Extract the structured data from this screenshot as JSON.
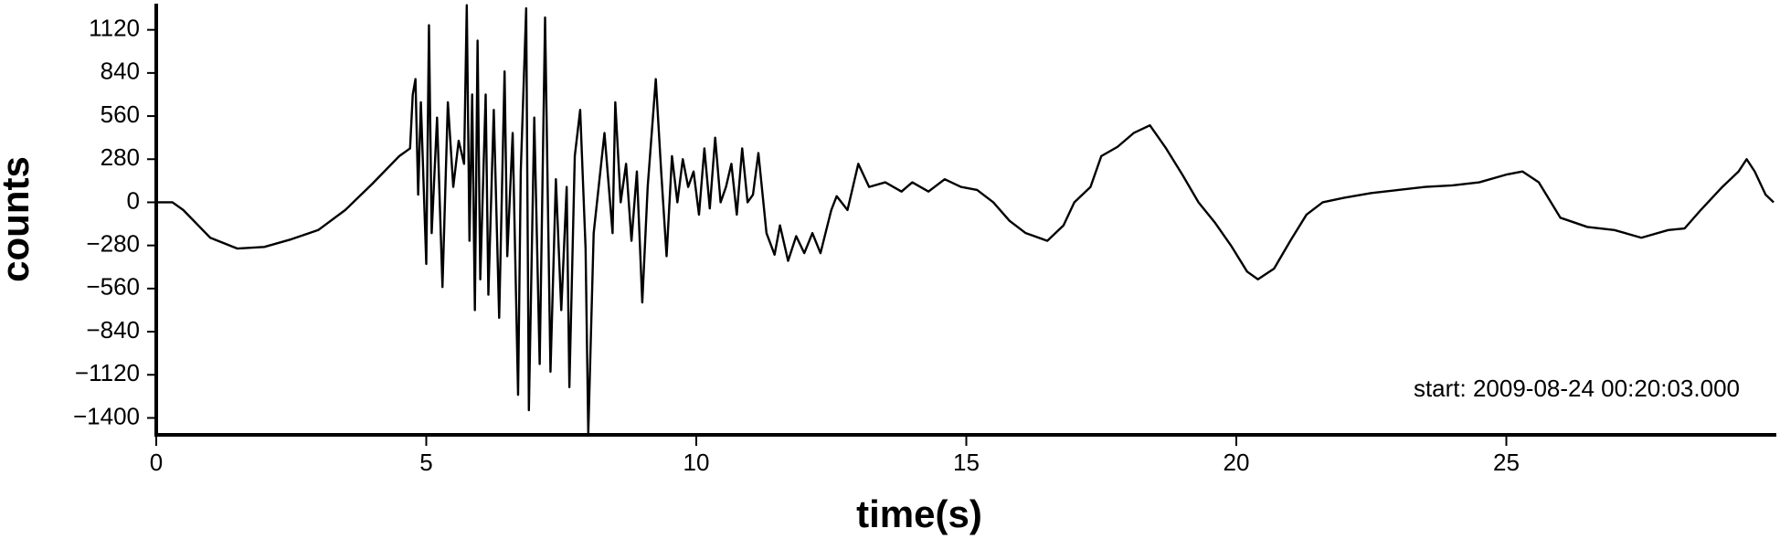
{
  "chart_data": {
    "type": "line",
    "x_label": "time(s)",
    "y_label": "counts",
    "annotation": "start: 2009-08-24 00:20:03.000",
    "xlim": [
      0,
      30
    ],
    "xticks": [
      0,
      5,
      10,
      15,
      20,
      25
    ],
    "ylim": [
      -1510,
      1290
    ],
    "yticks": [
      {
        "value": -1400,
        "label": "−1400"
      },
      {
        "value": -1120,
        "label": "−1120"
      },
      {
        "value": -840,
        "label": "−840"
      },
      {
        "value": -560,
        "label": "−560"
      },
      {
        "value": -280,
        "label": "−280"
      },
      0,
      280,
      560,
      840,
      1120
    ],
    "series": [
      {
        "color": "#000000",
        "x": [
          0,
          0.3,
          0.5,
          1.0,
          1.5,
          2.0,
          2.5,
          3.0,
          3.5,
          4.0,
          4.5,
          4.7,
          4.75,
          4.8,
          4.85,
          4.9,
          5.0,
          5.05,
          5.1,
          5.2,
          5.3,
          5.4,
          5.5,
          5.6,
          5.7,
          5.75,
          5.8,
          5.85,
          5.9,
          5.95,
          6.0,
          6.1,
          6.15,
          6.25,
          6.35,
          6.45,
          6.5,
          6.6,
          6.7,
          6.75,
          6.85,
          6.9,
          7.0,
          7.1,
          7.2,
          7.3,
          7.4,
          7.5,
          7.6,
          7.65,
          7.75,
          7.85,
          7.95,
          8.0,
          8.1,
          8.3,
          8.45,
          8.5,
          8.6,
          8.7,
          8.8,
          8.9,
          9.0,
          9.1,
          9.25,
          9.35,
          9.45,
          9.55,
          9.65,
          9.75,
          9.85,
          9.95,
          10.05,
          10.15,
          10.25,
          10.35,
          10.45,
          10.55,
          10.65,
          10.75,
          10.85,
          10.95,
          11.05,
          11.15,
          11.3,
          11.45,
          11.55,
          11.7,
          11.85,
          12.0,
          12.15,
          12.3,
          12.5,
          12.6,
          12.8,
          13.0,
          13.2,
          13.5,
          13.8,
          14.0,
          14.3,
          14.6,
          14.9,
          15.2,
          15.5,
          15.8,
          16.1,
          16.5,
          16.8,
          17.0,
          17.3,
          17.5,
          17.8,
          18.1,
          18.4,
          18.7,
          19.0,
          19.3,
          19.6,
          19.9,
          20.2,
          20.4,
          20.7,
          21.0,
          21.3,
          21.6,
          22.0,
          22.5,
          23.0,
          23.5,
          24.0,
          24.5,
          25.0,
          25.3,
          25.6,
          26.0,
          26.5,
          27.0,
          27.5,
          28.0,
          28.3,
          28.6,
          29.0,
          29.3,
          29.45,
          29.6,
          29.8,
          29.95
        ],
        "values": [
          0,
          0,
          -50,
          -230,
          -300,
          -290,
          -240,
          -180,
          -50,
          120,
          300,
          350,
          700,
          800,
          50,
          650,
          -400,
          1150,
          -200,
          550,
          -550,
          650,
          100,
          400,
          250,
          1280,
          -250,
          700,
          -700,
          1050,
          -500,
          700,
          -600,
          600,
          -750,
          850,
          -350,
          450,
          -1250,
          200,
          1260,
          -1350,
          550,
          -1050,
          1200,
          -1100,
          150,
          -700,
          100,
          -1200,
          300,
          600,
          -300,
          -1500,
          -200,
          450,
          -200,
          650,
          0,
          250,
          -250,
          200,
          -650,
          100,
          800,
          200,
          -350,
          300,
          0,
          280,
          100,
          200,
          -80,
          350,
          -40,
          420,
          0,
          100,
          250,
          -80,
          350,
          0,
          50,
          320,
          -200,
          -340,
          -150,
          -380,
          -220,
          -330,
          -200,
          -330,
          -50,
          40,
          -50,
          250,
          100,
          130,
          70,
          130,
          70,
          150,
          100,
          80,
          0,
          -120,
          -200,
          -250,
          -150,
          0,
          100,
          300,
          360,
          450,
          500,
          350,
          180,
          0,
          -130,
          -280,
          -450,
          -500,
          -430,
          -250,
          -80,
          0,
          30,
          60,
          80,
          100,
          110,
          130,
          180,
          200,
          130,
          -100,
          -160,
          -180,
          -230,
          -180,
          -170,
          -50,
          100,
          200,
          280,
          200,
          50,
          0
        ]
      }
    ]
  }
}
